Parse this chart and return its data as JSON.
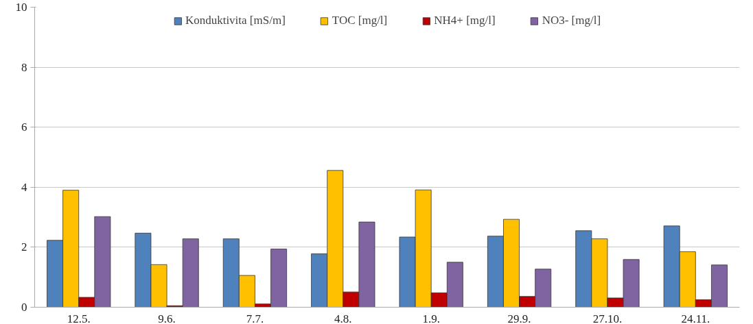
{
  "chart_data": {
    "type": "bar",
    "categories": [
      "12.5.",
      "9.6.",
      "7.7.",
      "4.8.",
      "1.9.",
      "29.9.",
      "27.10.",
      "24.11."
    ],
    "series": [
      {
        "name": "Konduktivita [mS/m]",
        "color": "#4f81bd",
        "values": [
          2.23,
          2.47,
          2.28,
          1.78,
          2.34,
          2.37,
          2.55,
          2.71
        ]
      },
      {
        "name": "TOC [mg/l]",
        "color": "#ffc000",
        "values": [
          3.9,
          1.42,
          1.06,
          4.56,
          3.91,
          2.93,
          2.28,
          1.85
        ]
      },
      {
        "name": "NH4+ [mg/l]",
        "color": "#c00000",
        "values": [
          0.33,
          0.05,
          0.11,
          0.51,
          0.48,
          0.36,
          0.31,
          0.25
        ]
      },
      {
        "name": "NO3- [mg/l]",
        "color": "#8064a2",
        "values": [
          3.02,
          2.28,
          1.94,
          2.84,
          1.5,
          1.27,
          1.59,
          1.41
        ]
      }
    ],
    "ylim": [
      0,
      10
    ],
    "yticks": [
      0,
      2,
      4,
      6,
      8,
      10
    ],
    "grid": "y",
    "legend": "top"
  }
}
